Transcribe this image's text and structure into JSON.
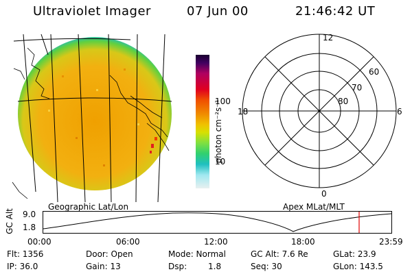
{
  "header": {
    "title": "Ultraviolet Imager",
    "date": "07 Jun 00",
    "time": "21:46:42 UT"
  },
  "colorbar": {
    "unit_label": "photon cm⁻²s⁻¹",
    "ticks": [
      "100",
      "10"
    ]
  },
  "panels": {
    "left_caption": "Geographic Lat/Lon",
    "right_caption": "Apex MLat/MLT",
    "polar_labels": {
      "mlt_12": "12",
      "mlt_18": "18",
      "mlt_6": "6",
      "mlt_0": "0",
      "lat_60": "60",
      "lat_70": "70",
      "lat_80": "80"
    }
  },
  "altitude_plot": {
    "ylabel": "GC Alt",
    "yticks": [
      "9.0",
      "1.8"
    ],
    "xticks": [
      "00:00",
      "06:00",
      "12:00",
      "18:00",
      "23:59"
    ],
    "marker_time": "21:46:42",
    "marker_color": "#e00000"
  },
  "info": {
    "flt": "Flt: 1356",
    "ip": "IP: 36.0",
    "door": "Door: Open",
    "gain": "Gain: 13",
    "mode": "Mode: Normal",
    "dsp_label": "Dsp:",
    "dsp_value": "1.8",
    "gc_alt": "GC Alt: 7.6 Re",
    "seq": "Seq: 30",
    "glat": "GLat: 23.9",
    "glon": "GLon: 143.5"
  }
}
